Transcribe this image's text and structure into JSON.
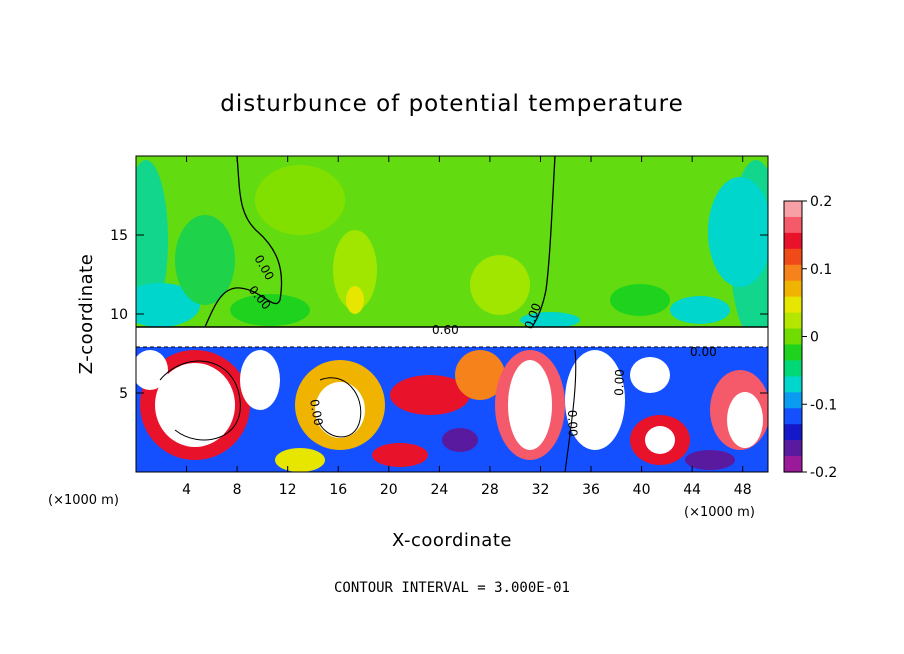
{
  "chart_data": {
    "type": "heatmap",
    "title": "disturbunce of potential temperature",
    "xlabel": "X-coordinate",
    "ylabel": "Z-coordinate",
    "x_unit": "(×1000 m)",
    "xlim": [
      0,
      50
    ],
    "ylim": [
      0,
      20
    ],
    "x_ticks": [
      4,
      8,
      12,
      16,
      20,
      24,
      28,
      32,
      36,
      40,
      44,
      48
    ],
    "y_ticks": [
      5,
      10,
      15
    ],
    "colorbar": {
      "range": [
        -0.2,
        0.2
      ],
      "tick_values": [
        0.2,
        0.1,
        0,
        -0.1,
        -0.2
      ],
      "tick_labels": [
        "0.2",
        "0.1",
        "0",
        "-0.1",
        "-0.2"
      ],
      "colors": [
        "#f7a0a6",
        "#f45a6a",
        "#e8122a",
        "#f04a18",
        "#f5821a",
        "#f0b400",
        "#e6e600",
        "#b4e600",
        "#70dc00",
        "#1ed21e",
        "#00d878",
        "#00d6cc",
        "#0a9cf0",
        "#1450ff",
        "#1418c8",
        "#5a1aa0",
        "#9a1a9a"
      ]
    },
    "contour_interval_text": "CONTOUR INTERVAL = 3.000E-01",
    "contour_labels": [
      "0.00",
      "0.00",
      "0.60",
      "0.00",
      "0.00",
      "0.00",
      "0.00",
      "0.00"
    ]
  }
}
